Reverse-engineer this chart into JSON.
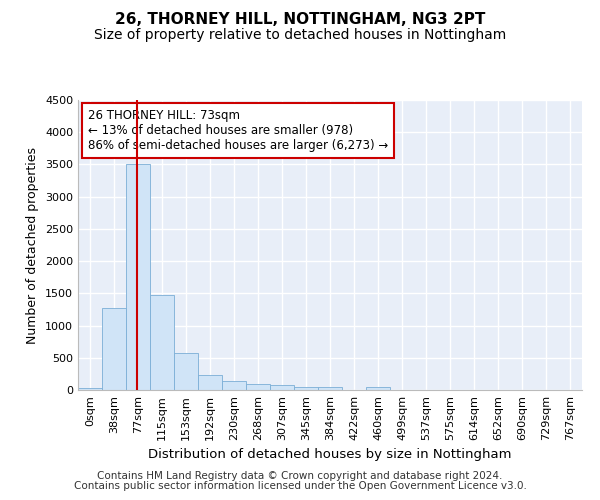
{
  "title1": "26, THORNEY HILL, NOTTINGHAM, NG3 2PT",
  "title2": "Size of property relative to detached houses in Nottingham",
  "xlabel": "Distribution of detached houses by size in Nottingham",
  "ylabel": "Number of detached properties",
  "footer1": "Contains HM Land Registry data © Crown copyright and database right 2024.",
  "footer2": "Contains public sector information licensed under the Open Government Licence v3.0.",
  "bin_labels": [
    "0sqm",
    "38sqm",
    "77sqm",
    "115sqm",
    "153sqm",
    "192sqm",
    "230sqm",
    "268sqm",
    "307sqm",
    "345sqm",
    "384sqm",
    "422sqm",
    "460sqm",
    "499sqm",
    "537sqm",
    "575sqm",
    "614sqm",
    "652sqm",
    "690sqm",
    "729sqm",
    "767sqm"
  ],
  "bar_values": [
    30,
    1280,
    3500,
    1480,
    570,
    240,
    140,
    100,
    70,
    50,
    40,
    0,
    50,
    0,
    0,
    0,
    0,
    0,
    0,
    0,
    0
  ],
  "bar_color": "#d0e4f7",
  "bar_edge_color": "#7baed6",
  "property_line_color": "#cc0000",
  "annotation_text": "26 THORNEY HILL: 73sqm\n← 13% of detached houses are smaller (978)\n86% of semi-detached houses are larger (6,273) →",
  "annotation_box_color": "#ffffff",
  "annotation_box_edge": "#cc0000",
  "ylim": [
    0,
    4500
  ],
  "yticks": [
    0,
    500,
    1000,
    1500,
    2000,
    2500,
    3000,
    3500,
    4000,
    4500
  ],
  "background_color": "#e8eef8",
  "grid_color": "#ffffff",
  "title1_fontsize": 11,
  "title2_fontsize": 10,
  "axis_tick_fontsize": 8,
  "ylabel_fontsize": 9,
  "xlabel_fontsize": 9.5,
  "footer_fontsize": 7.5,
  "annot_fontsize": 8.5
}
